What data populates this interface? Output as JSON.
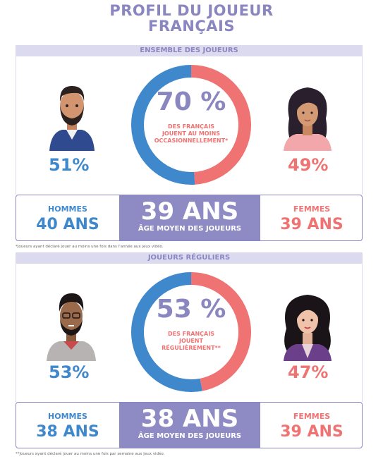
{
  "title": "PROFIL DU JOUEUR\nFRANÇAIS",
  "title_line1": "PROFIL DU JOUEUR",
  "title_line2": "FRANÇAIS",
  "colors": {
    "men": "#3f88cc",
    "women": "#ef7373",
    "accent": "#8e8bc4",
    "band": "#dcdaee"
  },
  "sections": [
    {
      "header": "ENSEMBLE DES JOUEURS",
      "donut_pct": "70 %",
      "donut_sub": [
        "DES FRANÇAIS",
        "JOUENT AU MOINS",
        "OCCASIONNELLEMENT*"
      ],
      "men_pct_label": "51%",
      "women_pct_label": "49%",
      "men_label": "HOMMES",
      "men_age": "40 ANS",
      "avg_age": "39 ANS",
      "avg_label": "ÂGE MOYEN DES JOUEURS",
      "women_label": "FEMMES",
      "women_age": "39 ANS",
      "footnote": "*Joueurs ayant déclaré jouer au moins une fois dans l'année aux jeux vidéo."
    },
    {
      "header": "JOUEURS RÉGULIERS",
      "donut_pct": "53 %",
      "donut_sub": [
        "DES FRANÇAIS",
        "JOUENT",
        "RÉGULIÈREMENT**"
      ],
      "men_pct_label": "53%",
      "women_pct_label": "47%",
      "men_label": "HOMMES",
      "men_age": "38 ANS",
      "avg_age": "38 ANS",
      "avg_label": "ÂGE MOYEN DES JOUEURS",
      "women_label": "FEMMES",
      "women_age": "39 ANS",
      "footnote": "**Joueurs ayant déclaré jouer au moins une fois par semaine aux jeux vidéo."
    }
  ],
  "chart_data": [
    {
      "type": "pie",
      "title": "ENSEMBLE DES JOUEURS",
      "categories": [
        "HOMMES",
        "FEMMES"
      ],
      "values": [
        51,
        49
      ],
      "center_value": 70
    },
    {
      "type": "pie",
      "title": "JOUEURS RÉGULIERS",
      "categories": [
        "HOMMES",
        "FEMMES"
      ],
      "values": [
        53,
        47
      ],
      "center_value": 53
    }
  ]
}
